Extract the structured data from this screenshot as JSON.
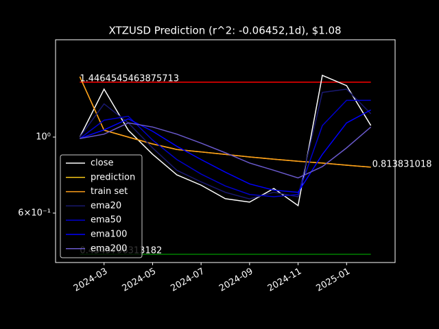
{
  "chart_data": {
    "type": "line",
    "title": "XTZUSD Prediction (r^2: -0.06452,1d), $1.08",
    "x": [
      "2024-02",
      "2024-03",
      "2024-04",
      "2024-05",
      "2024-06",
      "2024-07",
      "2024-08",
      "2024-09",
      "2024-10",
      "2024-11",
      "2024-12",
      "2025-01",
      "2025-02"
    ],
    "series": [
      {
        "name": "close",
        "color": "#ffffff",
        "values": [
          1.0,
          1.38,
          1.047,
          0.891,
          0.776,
          0.724,
          0.661,
          0.646,
          0.708,
          0.631,
          1.514,
          1.413,
          1.081
        ]
      },
      {
        "name": "prediction",
        "color": "#f5c518",
        "values": [
          1.5,
          1.047,
          1.0,
          0.955,
          0.92,
          0.905,
          0.89,
          0.875,
          0.862,
          0.85,
          0.84,
          0.828,
          0.817
        ]
      },
      {
        "name": "train set",
        "color": "#ff9f1a",
        "values": [
          1.5,
          1.047,
          1.0,
          0.955,
          0.92,
          0.905,
          0.89,
          0.875,
          0.862,
          0.85,
          0.84,
          0.828,
          0.817
        ]
      },
      {
        "name": "ema20",
        "color": "#191970",
        "values": [
          1.0,
          1.25,
          1.1,
          0.93,
          0.8,
          0.74,
          0.69,
          0.66,
          0.69,
          0.67,
          1.35,
          1.38,
          1.17
        ]
      },
      {
        "name": "ema50",
        "color": "#0000cd",
        "values": [
          0.99,
          1.12,
          1.15,
          0.98,
          0.86,
          0.78,
          0.72,
          0.68,
          0.67,
          0.68,
          1.08,
          1.28,
          1.28
        ]
      },
      {
        "name": "ema100",
        "color": "#0000ff",
        "values": [
          0.99,
          1.05,
          1.13,
          1.04,
          0.94,
          0.86,
          0.79,
          0.73,
          0.7,
          0.69,
          0.89,
          1.1,
          1.2
        ]
      },
      {
        "name": "ema200",
        "color": "#6a5acd",
        "values": [
          0.99,
          1.02,
          1.1,
          1.07,
          1.02,
          0.96,
          0.9,
          0.84,
          0.8,
          0.76,
          0.82,
          0.93,
          1.07
        ]
      }
    ],
    "hlines": [
      {
        "value": 1.4464545463875713,
        "color": "#ff0000",
        "label": "1.4464545463875713"
      },
      {
        "value": 0.4549796313182,
        "color": "#008000",
        "label": "0.4549796313182"
      }
    ],
    "end_label": "0.813831018",
    "xlim": [
      "2024-01",
      "2025-03"
    ],
    "xticks": [
      "2024-03",
      "2024-05",
      "2024-07",
      "2024-09",
      "2024-11",
      "2025-01"
    ],
    "ylim": [
      0.4305,
      1.923
    ],
    "ylog": true,
    "yticks": [
      {
        "value": 1,
        "label": "10⁰"
      },
      {
        "value": 0.6,
        "label": "6×10⁻¹"
      }
    ],
    "legend": "lower left"
  }
}
